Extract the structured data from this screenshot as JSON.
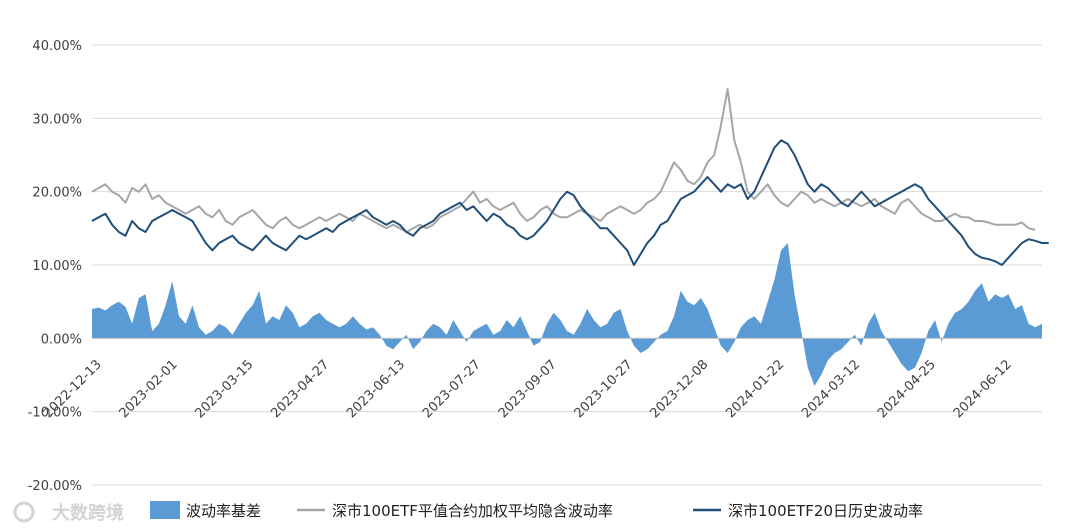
{
  "chart_data": {
    "type": "line",
    "title": "",
    "xlabel": "",
    "ylabel": "",
    "ylim": [
      -0.2,
      0.4
    ],
    "y_ticks": [
      "40.00%",
      "30.00%",
      "20.00%",
      "10.00%",
      "0.00%",
      "-10.00%",
      "-20.00%"
    ],
    "x_ticks": [
      "2022-12-13",
      "2023-02-01",
      "2023-03-15",
      "2023-04-27",
      "2023-06-13",
      "2023-07-27",
      "2023-09-07",
      "2023-10-27",
      "2023-12-08",
      "2024-01-22",
      "2024-03-12",
      "2024-04-25",
      "2024-06-12"
    ],
    "grid": "horizontal",
    "legend_position": "bottom",
    "series": [
      {
        "name": "波动率基差",
        "kind": "area",
        "color": "#5b9bd5",
        "values": [
          0.04,
          0.042,
          0.038,
          0.045,
          0.05,
          0.043,
          0.02,
          0.055,
          0.06,
          0.01,
          0.02,
          0.045,
          0.078,
          0.03,
          0.02,
          0.045,
          0.015,
          0.005,
          0.01,
          0.02,
          0.015,
          0.005,
          0.02,
          0.035,
          0.045,
          0.065,
          0.02,
          0.03,
          0.025,
          0.045,
          0.035,
          0.015,
          0.02,
          0.03,
          0.035,
          0.025,
          0.02,
          0.015,
          0.02,
          0.03,
          0.02,
          0.012,
          0.015,
          0.005,
          -0.01,
          -0.015,
          -0.005,
          0.005,
          -0.015,
          -0.005,
          0.01,
          0.02,
          0.015,
          0.005,
          0.025,
          0.01,
          -0.005,
          0.01,
          0.015,
          0.02,
          0.005,
          0.01,
          0.025,
          0.015,
          0.03,
          0.01,
          -0.01,
          -0.005,
          0.02,
          0.035,
          0.025,
          0.01,
          0.005,
          0.02,
          0.04,
          0.025,
          0.015,
          0.02,
          0.035,
          0.04,
          0.01,
          -0.01,
          -0.02,
          -0.015,
          -0.005,
          0.005,
          0.01,
          0.03,
          0.065,
          0.05,
          0.045,
          0.055,
          0.04,
          0.015,
          -0.01,
          -0.02,
          -0.005,
          0.015,
          0.025,
          0.03,
          0.02,
          0.05,
          0.08,
          0.12,
          0.13,
          0.06,
          0.01,
          -0.04,
          -0.065,
          -0.05,
          -0.03,
          -0.02,
          -0.015,
          -0.005,
          0.005,
          -0.01,
          0.02,
          0.035,
          0.01,
          -0.005,
          -0.02,
          -0.035,
          -0.045,
          -0.04,
          -0.02,
          0.01,
          0.025,
          -0.005,
          0.02,
          0.035,
          0.04,
          0.05,
          0.065,
          0.075,
          0.05,
          0.06,
          0.055,
          0.06,
          0.04,
          0.045,
          0.02,
          0.015,
          0.02
        ]
      },
      {
        "name": "深市100ETF平值合约加权平均隐含波动率",
        "kind": "line",
        "color": "#a6a6a6",
        "values": [
          0.2,
          0.205,
          0.21,
          0.2,
          0.195,
          0.185,
          0.205,
          0.2,
          0.21,
          0.19,
          0.195,
          0.185,
          0.18,
          0.175,
          0.17,
          0.175,
          0.18,
          0.17,
          0.165,
          0.175,
          0.16,
          0.155,
          0.165,
          0.17,
          0.175,
          0.165,
          0.155,
          0.15,
          0.16,
          0.165,
          0.155,
          0.15,
          0.155,
          0.16,
          0.165,
          0.16,
          0.165,
          0.17,
          0.165,
          0.16,
          0.17,
          0.165,
          0.16,
          0.155,
          0.15,
          0.155,
          0.15,
          0.145,
          0.15,
          0.155,
          0.15,
          0.155,
          0.165,
          0.17,
          0.175,
          0.18,
          0.19,
          0.2,
          0.185,
          0.19,
          0.18,
          0.175,
          0.18,
          0.185,
          0.17,
          0.16,
          0.165,
          0.175,
          0.18,
          0.17,
          0.165,
          0.165,
          0.17,
          0.175,
          0.17,
          0.165,
          0.16,
          0.17,
          0.175,
          0.18,
          0.175,
          0.17,
          0.175,
          0.185,
          0.19,
          0.2,
          0.22,
          0.24,
          0.23,
          0.215,
          0.21,
          0.22,
          0.24,
          0.25,
          0.29,
          0.34,
          0.27,
          0.24,
          0.2,
          0.19,
          0.2,
          0.21,
          0.195,
          0.185,
          0.18,
          0.19,
          0.2,
          0.195,
          0.185,
          0.19,
          0.185,
          0.18,
          0.185,
          0.19,
          0.185,
          0.18,
          0.185,
          0.19,
          0.18,
          0.175,
          0.17,
          0.185,
          0.19,
          0.18,
          0.17,
          0.165,
          0.16,
          0.16,
          0.165,
          0.17,
          0.165,
          0.165,
          0.16,
          0.16,
          0.158,
          0.155,
          0.155,
          0.155,
          0.155,
          0.158,
          0.15,
          0.148
        ]
      },
      {
        "name": "深市100ETF20日历史波动率",
        "kind": "line",
        "color": "#1f4e79",
        "values": [
          0.16,
          0.165,
          0.17,
          0.155,
          0.145,
          0.14,
          0.16,
          0.15,
          0.145,
          0.16,
          0.165,
          0.17,
          0.175,
          0.17,
          0.165,
          0.16,
          0.145,
          0.13,
          0.12,
          0.13,
          0.135,
          0.14,
          0.13,
          0.125,
          0.12,
          0.13,
          0.14,
          0.13,
          0.125,
          0.12,
          0.13,
          0.14,
          0.135,
          0.14,
          0.145,
          0.15,
          0.145,
          0.155,
          0.16,
          0.165,
          0.17,
          0.175,
          0.165,
          0.16,
          0.155,
          0.16,
          0.155,
          0.145,
          0.14,
          0.15,
          0.155,
          0.16,
          0.17,
          0.175,
          0.18,
          0.185,
          0.175,
          0.18,
          0.17,
          0.16,
          0.17,
          0.165,
          0.155,
          0.15,
          0.14,
          0.135,
          0.14,
          0.15,
          0.16,
          0.175,
          0.19,
          0.2,
          0.195,
          0.18,
          0.17,
          0.16,
          0.15,
          0.15,
          0.14,
          0.13,
          0.12,
          0.1,
          0.115,
          0.13,
          0.14,
          0.155,
          0.16,
          0.175,
          0.19,
          0.195,
          0.2,
          0.21,
          0.22,
          0.21,
          0.2,
          0.21,
          0.205,
          0.21,
          0.19,
          0.2,
          0.22,
          0.24,
          0.26,
          0.27,
          0.265,
          0.25,
          0.23,
          0.21,
          0.2,
          0.21,
          0.205,
          0.195,
          0.185,
          0.18,
          0.19,
          0.2,
          0.19,
          0.18,
          0.185,
          0.19,
          0.195,
          0.2,
          0.205,
          0.21,
          0.205,
          0.19,
          0.18,
          0.17,
          0.16,
          0.15,
          0.14,
          0.125,
          0.115,
          0.11,
          0.108,
          0.105,
          0.1,
          0.11,
          0.12,
          0.13,
          0.135,
          0.133,
          0.13,
          0.13
        ]
      }
    ]
  },
  "legend": [
    {
      "label": "波动率基差",
      "color": "#5b9bd5",
      "kind": "area"
    },
    {
      "label": "深市100ETF平值合约加权平均隐含波动率",
      "color": "#a6a6a6",
      "kind": "line"
    },
    {
      "label": "深市100ETF20日历史波动率",
      "color": "#1f4e79",
      "kind": "line"
    }
  ],
  "watermark": {
    "text": "大数跨境",
    "icon": "logo-icon"
  }
}
